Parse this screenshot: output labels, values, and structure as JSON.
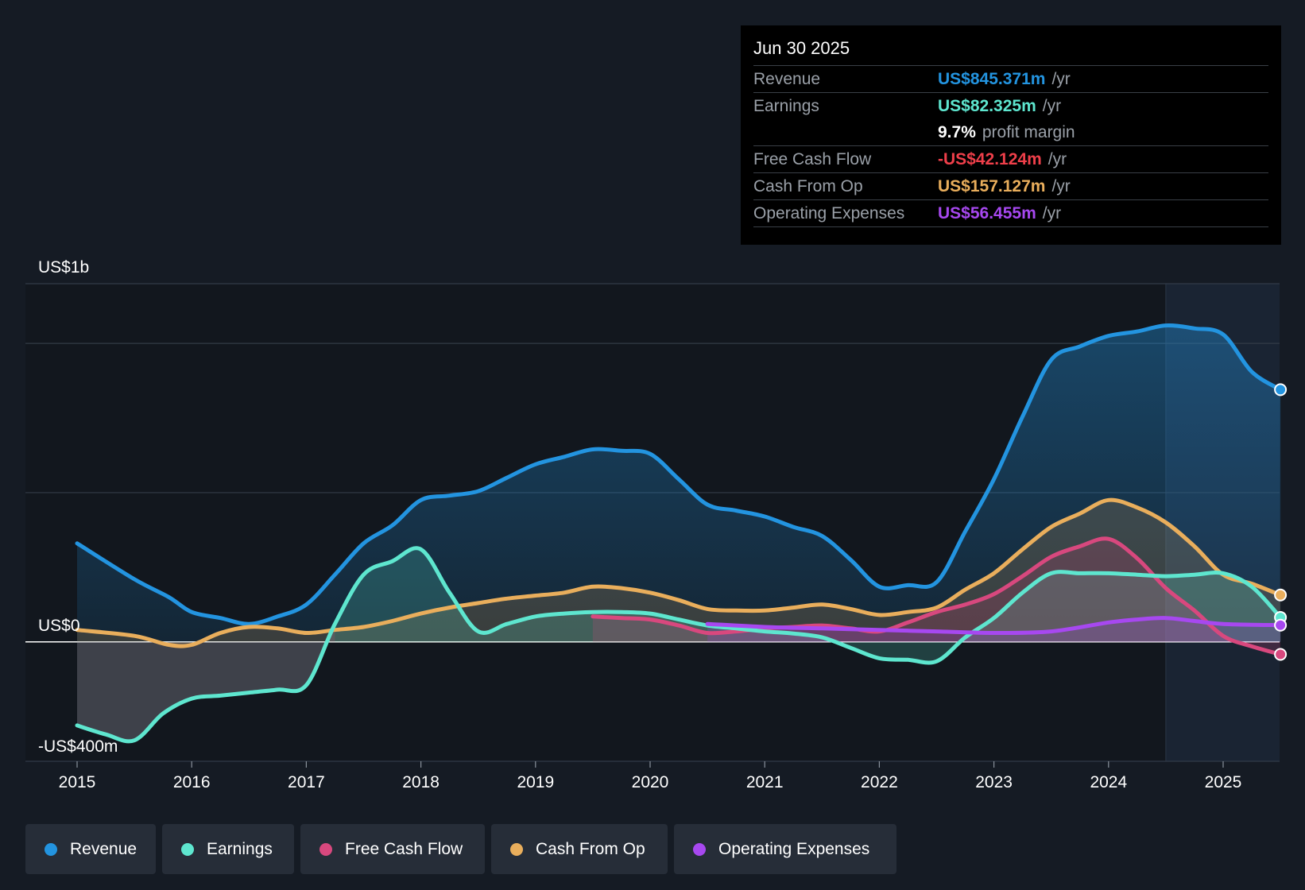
{
  "tooltip": {
    "date": "Jun 30 2025",
    "rows": [
      {
        "label": "Revenue",
        "value": "US$845.371m",
        "unit": "/yr"
      },
      {
        "label": "Earnings",
        "value": "US$82.325m",
        "unit": "/yr"
      },
      {
        "label": "",
        "value": "9.7%",
        "unit": "profit margin"
      },
      {
        "label": "Free Cash Flow",
        "value": "-US$42.124m",
        "unit": "/yr"
      },
      {
        "label": "Cash From Op",
        "value": "US$157.127m",
        "unit": "/yr"
      },
      {
        "label": "Operating Expenses",
        "value": "US$56.455m",
        "unit": "/yr"
      }
    ]
  },
  "colors": {
    "revenue": "#2394e0",
    "earnings": "#5ee6cf",
    "free_cash_flow": "#d8487e",
    "cash_from_op": "#e9ae5c",
    "operating_expenses": "#a748f0"
  },
  "legend": {
    "items": [
      {
        "label": "Revenue"
      },
      {
        "label": "Earnings"
      },
      {
        "label": "Free Cash Flow"
      },
      {
        "label": "Cash From Op"
      },
      {
        "label": "Operating Expenses"
      }
    ]
  },
  "chart_data": {
    "type": "area",
    "title": "",
    "xlabel": "",
    "ylabel": "",
    "ylim": [
      -400,
      1200
    ],
    "xlim": [
      2014.56,
      2025.5
    ],
    "y_axis_labels": [
      {
        "value": 1200,
        "text": "US$1b"
      },
      {
        "value": 0,
        "text": "US$0"
      },
      {
        "value": -400,
        "text": "-US$400m"
      }
    ],
    "gridlines": [
      1200,
      1000,
      500,
      0,
      -400
    ],
    "x_ticks": [
      2015,
      2016,
      2017,
      2018,
      2019,
      2020,
      2021,
      2022,
      2023,
      2024,
      2025
    ],
    "x_tick_labels": [
      "2015",
      "2016",
      "2017",
      "2018",
      "2019",
      "2020",
      "2021",
      "2022",
      "2023",
      "2024",
      "2025"
    ],
    "forecast_start": 2024.5,
    "series": [
      {
        "name": "Revenue",
        "key": "revenue",
        "points": [
          [
            2015,
            330
          ],
          [
            2015.5,
            210
          ],
          [
            2015.8,
            150
          ],
          [
            2016,
            100
          ],
          [
            2016.25,
            80
          ],
          [
            2016.5,
            60
          ],
          [
            2016.75,
            85
          ],
          [
            2017,
            125
          ],
          [
            2017.25,
            225
          ],
          [
            2017.5,
            330
          ],
          [
            2017.75,
            390
          ],
          [
            2018,
            475
          ],
          [
            2018.25,
            490
          ],
          [
            2018.5,
            505
          ],
          [
            2018.75,
            550
          ],
          [
            2019,
            595
          ],
          [
            2019.25,
            620
          ],
          [
            2019.5,
            645
          ],
          [
            2019.75,
            640
          ],
          [
            2020,
            630
          ],
          [
            2020.25,
            545
          ],
          [
            2020.5,
            460
          ],
          [
            2020.75,
            440
          ],
          [
            2021,
            420
          ],
          [
            2021.25,
            385
          ],
          [
            2021.5,
            355
          ],
          [
            2021.75,
            275
          ],
          [
            2022,
            185
          ],
          [
            2022.25,
            190
          ],
          [
            2022.5,
            200
          ],
          [
            2022.75,
            370
          ],
          [
            2023,
            545
          ],
          [
            2023.25,
            755
          ],
          [
            2023.5,
            945
          ],
          [
            2023.75,
            990
          ],
          [
            2024,
            1025
          ],
          [
            2024.25,
            1040
          ],
          [
            2024.5,
            1060
          ],
          [
            2024.75,
            1050
          ],
          [
            2025,
            1030
          ],
          [
            2025.25,
            905
          ],
          [
            2025.5,
            845
          ]
        ]
      },
      {
        "name": "Earnings",
        "key": "earnings",
        "points": [
          [
            2015,
            -280
          ],
          [
            2015.25,
            -310
          ],
          [
            2015.5,
            -330
          ],
          [
            2015.75,
            -240
          ],
          [
            2016,
            -190
          ],
          [
            2016.25,
            -180
          ],
          [
            2016.5,
            -170
          ],
          [
            2016.75,
            -160
          ],
          [
            2017,
            -145
          ],
          [
            2017.25,
            60
          ],
          [
            2017.5,
            225
          ],
          [
            2017.75,
            270
          ],
          [
            2018,
            310
          ],
          [
            2018.25,
            165
          ],
          [
            2018.5,
            35
          ],
          [
            2018.75,
            60
          ],
          [
            2019,
            85
          ],
          [
            2019.25,
            95
          ],
          [
            2019.5,
            100
          ],
          [
            2019.75,
            100
          ],
          [
            2020,
            95
          ],
          [
            2020.25,
            75
          ],
          [
            2020.5,
            55
          ],
          [
            2020.75,
            45
          ],
          [
            2021,
            35
          ],
          [
            2021.25,
            28
          ],
          [
            2021.5,
            15
          ],
          [
            2021.75,
            -20
          ],
          [
            2022,
            -55
          ],
          [
            2022.25,
            -60
          ],
          [
            2022.5,
            -65
          ],
          [
            2022.75,
            15
          ],
          [
            2023,
            80
          ],
          [
            2023.25,
            165
          ],
          [
            2023.5,
            230
          ],
          [
            2023.75,
            230
          ],
          [
            2024,
            230
          ],
          [
            2024.25,
            225
          ],
          [
            2024.5,
            220
          ],
          [
            2024.75,
            225
          ],
          [
            2025,
            230
          ],
          [
            2025.25,
            185
          ],
          [
            2025.5,
            82
          ]
        ]
      },
      {
        "name": "Free Cash Flow",
        "key": "free_cash_flow",
        "points": [
          [
            2019.5,
            85
          ],
          [
            2019.75,
            80
          ],
          [
            2020,
            75
          ],
          [
            2020.25,
            55
          ],
          [
            2020.5,
            30
          ],
          [
            2020.75,
            35
          ],
          [
            2021,
            45
          ],
          [
            2021.25,
            50
          ],
          [
            2021.5,
            55
          ],
          [
            2021.75,
            45
          ],
          [
            2022,
            35
          ],
          [
            2022.25,
            65
          ],
          [
            2022.5,
            100
          ],
          [
            2022.75,
            125
          ],
          [
            2023,
            160
          ],
          [
            2023.25,
            220
          ],
          [
            2023.5,
            285
          ],
          [
            2023.75,
            320
          ],
          [
            2024,
            345
          ],
          [
            2024.25,
            280
          ],
          [
            2024.5,
            180
          ],
          [
            2024.75,
            105
          ],
          [
            2025,
            20
          ],
          [
            2025.25,
            -15
          ],
          [
            2025.5,
            -42
          ]
        ]
      },
      {
        "name": "Cash From Op",
        "key": "cash_from_op",
        "points": [
          [
            2015,
            40
          ],
          [
            2015.5,
            20
          ],
          [
            2015.8,
            -10
          ],
          [
            2016,
            -10
          ],
          [
            2016.25,
            30
          ],
          [
            2016.5,
            50
          ],
          [
            2016.75,
            45
          ],
          [
            2017,
            30
          ],
          [
            2017.25,
            40
          ],
          [
            2017.5,
            50
          ],
          [
            2017.75,
            70
          ],
          [
            2018,
            95
          ],
          [
            2018.25,
            115
          ],
          [
            2018.5,
            130
          ],
          [
            2018.75,
            145
          ],
          [
            2019,
            155
          ],
          [
            2019.25,
            165
          ],
          [
            2019.5,
            185
          ],
          [
            2019.75,
            180
          ],
          [
            2020,
            165
          ],
          [
            2020.25,
            140
          ],
          [
            2020.5,
            110
          ],
          [
            2020.75,
            105
          ],
          [
            2021,
            105
          ],
          [
            2021.25,
            115
          ],
          [
            2021.5,
            125
          ],
          [
            2021.75,
            110
          ],
          [
            2022,
            90
          ],
          [
            2022.25,
            100
          ],
          [
            2022.5,
            115
          ],
          [
            2022.75,
            175
          ],
          [
            2023,
            230
          ],
          [
            2023.25,
            310
          ],
          [
            2023.5,
            385
          ],
          [
            2023.75,
            430
          ],
          [
            2024,
            475
          ],
          [
            2024.25,
            450
          ],
          [
            2024.5,
            400
          ],
          [
            2024.75,
            320
          ],
          [
            2025,
            225
          ],
          [
            2025.25,
            195
          ],
          [
            2025.5,
            157
          ]
        ]
      },
      {
        "name": "Operating Expenses",
        "key": "operating_expenses",
        "points": [
          [
            2020.5,
            60
          ],
          [
            2021,
            50
          ],
          [
            2021.5,
            45
          ],
          [
            2022,
            40
          ],
          [
            2022.5,
            35
          ],
          [
            2023,
            30
          ],
          [
            2023.5,
            35
          ],
          [
            2024,
            65
          ],
          [
            2024.25,
            75
          ],
          [
            2024.5,
            80
          ],
          [
            2024.75,
            70
          ],
          [
            2025,
            60
          ],
          [
            2025.5,
            56
          ]
        ]
      }
    ]
  }
}
